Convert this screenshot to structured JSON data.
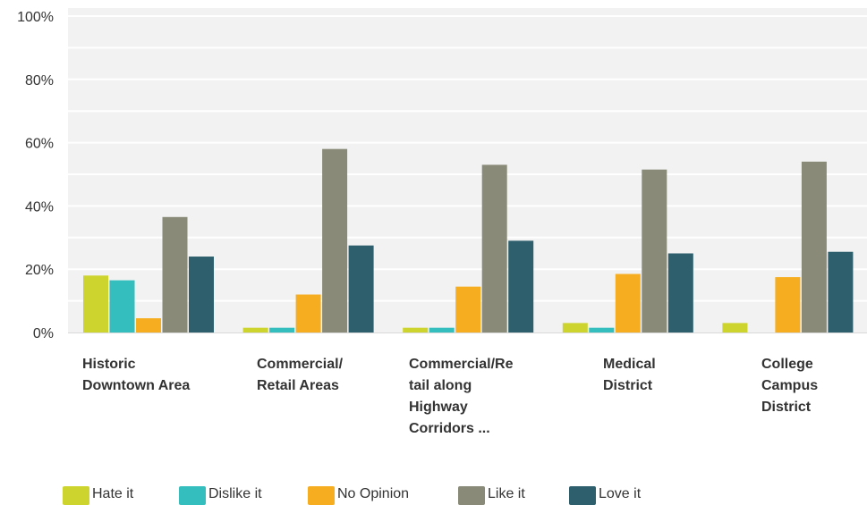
{
  "chart_data": {
    "type": "bar",
    "categories": [
      [
        "Historic",
        "Downtown Area"
      ],
      [
        "Commercial/",
        "Retail Areas"
      ],
      [
        "Commercial/Re",
        "tail along",
        "Highway",
        "Corridors ..."
      ],
      [
        "Medical",
        "District"
      ],
      [
        "College",
        "Campus",
        "District"
      ]
    ],
    "series": [
      {
        "name": "Hate it",
        "color": "#cdd42d",
        "values": [
          18,
          1.5,
          1.5,
          3,
          3
        ]
      },
      {
        "name": "Dislike it",
        "color": "#34bfbe",
        "values": [
          16.5,
          1.5,
          1.5,
          1.5,
          0
        ]
      },
      {
        "name": "No Opinion",
        "color": "#f6ae20",
        "values": [
          4.5,
          12,
          14.5,
          18.5,
          17.5
        ]
      },
      {
        "name": "Like it",
        "color": "#8a8a78",
        "values": [
          36.5,
          58,
          53,
          51.5,
          54
        ]
      },
      {
        "name": "Love it",
        "color": "#2d5f6c",
        "values": [
          24,
          27.5,
          29,
          25,
          25.5
        ]
      }
    ],
    "yticks": [
      "0%",
      "20%",
      "40%",
      "60%",
      "80%",
      "100%"
    ],
    "ylim": [
      0,
      100
    ],
    "grid": true,
    "legend": "bottom-left"
  }
}
